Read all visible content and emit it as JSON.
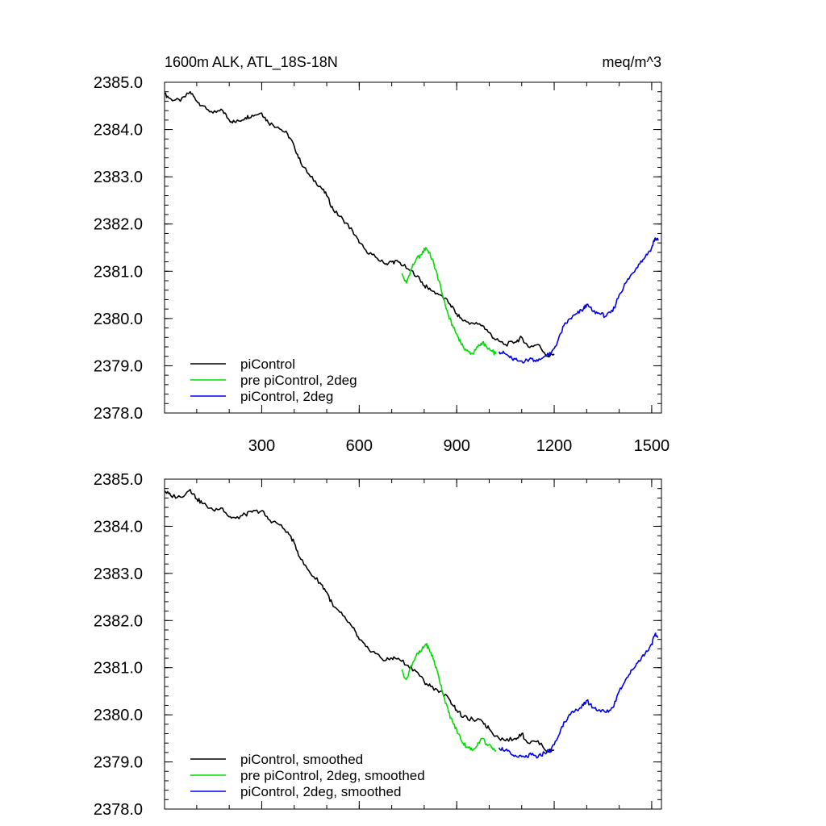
{
  "chart_data": [
    {
      "type": "line",
      "title": "1600m ALK, ATL_18S-18N",
      "units": "meq/m^3",
      "xlim": [
        1,
        1530
      ],
      "ylim": [
        2378.0,
        2385.0
      ],
      "x_ticks": [
        300,
        600,
        900,
        1200,
        1500
      ],
      "x_tick_labels": [
        "300",
        "600",
        "900",
        "1200",
        "1500"
      ],
      "y_ticks": [
        2378.0,
        2379.0,
        2380.0,
        2381.0,
        2382.0,
        2383.0,
        2384.0,
        2385.0
      ],
      "y_tick_labels": [
        "2378.0",
        "2379.0",
        "2380.0",
        "2381.0",
        "2382.0",
        "2383.0",
        "2384.0",
        "2385.0"
      ],
      "legend_position": "bottom-left",
      "series": [
        {
          "name": "piControl",
          "color": "#000000",
          "x": [
            1,
            20,
            50,
            80,
            100,
            120,
            150,
            180,
            200,
            220,
            250,
            270,
            300,
            320,
            350,
            380,
            400,
            420,
            450,
            480,
            500,
            520,
            550,
            580,
            600,
            620,
            650,
            680,
            700,
            720,
            750,
            780,
            800,
            820,
            850,
            880,
            900,
            920,
            950,
            980,
            1000,
            1020,
            1050,
            1080,
            1100,
            1120,
            1150,
            1180,
            1200
          ],
          "y": [
            2384.75,
            2384.65,
            2384.6,
            2384.8,
            2384.6,
            2384.5,
            2384.35,
            2384.4,
            2384.2,
            2384.15,
            2384.25,
            2384.3,
            2384.35,
            2384.15,
            2384.05,
            2383.9,
            2383.65,
            2383.3,
            2383.0,
            2382.8,
            2382.6,
            2382.3,
            2382.1,
            2381.85,
            2381.6,
            2381.45,
            2381.3,
            2381.15,
            2381.2,
            2381.2,
            2381.05,
            2380.9,
            2380.7,
            2380.6,
            2380.5,
            2380.3,
            2380.1,
            2379.95,
            2379.9,
            2379.85,
            2379.7,
            2379.55,
            2379.45,
            2379.5,
            2379.6,
            2379.4,
            2379.45,
            2379.2,
            2379.25
          ]
        },
        {
          "name": "pre piControl, 2deg",
          "color": "#00dd00",
          "x": [
            730,
            745,
            760,
            775,
            790,
            805,
            815,
            830,
            845,
            860,
            875,
            890,
            905,
            920,
            935,
            950,
            965,
            980,
            995,
            1010,
            1020
          ],
          "y": [
            2380.95,
            2380.75,
            2381.05,
            2381.25,
            2381.35,
            2381.5,
            2381.4,
            2381.15,
            2380.8,
            2380.4,
            2380.05,
            2379.8,
            2379.6,
            2379.4,
            2379.3,
            2379.25,
            2379.4,
            2379.5,
            2379.35,
            2379.3,
            2379.25
          ]
        },
        {
          "name": "piControl, 2deg",
          "color": "#0000ee",
          "x": [
            1030,
            1050,
            1070,
            1090,
            1110,
            1130,
            1150,
            1170,
            1190,
            1210,
            1230,
            1250,
            1270,
            1290,
            1300,
            1320,
            1340,
            1360,
            1380,
            1400,
            1420,
            1440,
            1460,
            1480,
            1500,
            1510,
            1520
          ],
          "y": [
            2379.3,
            2379.25,
            2379.15,
            2379.1,
            2379.1,
            2379.15,
            2379.1,
            2379.2,
            2379.25,
            2379.5,
            2379.85,
            2380.0,
            2380.1,
            2380.2,
            2380.3,
            2380.15,
            2380.1,
            2380.05,
            2380.15,
            2380.5,
            2380.75,
            2380.95,
            2381.15,
            2381.3,
            2381.5,
            2381.7,
            2381.65
          ]
        }
      ]
    },
    {
      "type": "line",
      "xlim": [
        1,
        1530
      ],
      "ylim": [
        2378.0,
        2385.0
      ],
      "x_ticks": [
        300,
        600,
        900,
        1200,
        1500
      ],
      "y_ticks": [
        2378.0,
        2379.0,
        2380.0,
        2381.0,
        2382.0,
        2383.0,
        2384.0,
        2385.0
      ],
      "y_tick_labels": [
        "2378.0",
        "2379.0",
        "2380.0",
        "2381.0",
        "2382.0",
        "2383.0",
        "2384.0",
        "2385.0"
      ],
      "legend_position": "bottom-left",
      "series": [
        {
          "name": "piControl, smoothed",
          "color": "#000000",
          "x": [
            1,
            20,
            50,
            80,
            100,
            120,
            150,
            180,
            200,
            220,
            250,
            270,
            300,
            320,
            350,
            380,
            400,
            420,
            450,
            480,
            500,
            520,
            550,
            580,
            600,
            620,
            650,
            680,
            700,
            720,
            750,
            780,
            800,
            820,
            850,
            880,
            900,
            920,
            950,
            980,
            1000,
            1020,
            1050,
            1080,
            1100,
            1120,
            1150,
            1180,
            1200
          ],
          "y": [
            2384.75,
            2384.65,
            2384.62,
            2384.78,
            2384.58,
            2384.48,
            2384.35,
            2384.38,
            2384.2,
            2384.17,
            2384.25,
            2384.3,
            2384.33,
            2384.15,
            2384.05,
            2383.88,
            2383.65,
            2383.3,
            2383.0,
            2382.8,
            2382.6,
            2382.3,
            2382.1,
            2381.85,
            2381.6,
            2381.45,
            2381.3,
            2381.15,
            2381.2,
            2381.2,
            2381.05,
            2380.9,
            2380.7,
            2380.6,
            2380.5,
            2380.3,
            2380.1,
            2379.95,
            2379.9,
            2379.85,
            2379.7,
            2379.55,
            2379.45,
            2379.5,
            2379.6,
            2379.4,
            2379.45,
            2379.22,
            2379.25
          ]
        },
        {
          "name": "pre piControl, 2deg, smoothed",
          "color": "#00dd00",
          "x": [
            730,
            745,
            760,
            775,
            790,
            805,
            815,
            830,
            845,
            860,
            875,
            890,
            905,
            920,
            935,
            950,
            965,
            980,
            995,
            1010,
            1020
          ],
          "y": [
            2380.95,
            2380.75,
            2381.05,
            2381.25,
            2381.35,
            2381.5,
            2381.4,
            2381.15,
            2380.8,
            2380.4,
            2380.05,
            2379.8,
            2379.6,
            2379.4,
            2379.3,
            2379.25,
            2379.4,
            2379.5,
            2379.35,
            2379.3,
            2379.25
          ]
        },
        {
          "name": "piControl, 2deg, smoothed",
          "color": "#0000ee",
          "x": [
            1030,
            1050,
            1070,
            1090,
            1110,
            1130,
            1150,
            1170,
            1190,
            1210,
            1230,
            1250,
            1270,
            1290,
            1300,
            1320,
            1340,
            1360,
            1380,
            1400,
            1420,
            1440,
            1460,
            1480,
            1500,
            1510,
            1520
          ],
          "y": [
            2379.3,
            2379.25,
            2379.15,
            2379.1,
            2379.1,
            2379.15,
            2379.1,
            2379.2,
            2379.25,
            2379.5,
            2379.85,
            2380.0,
            2380.1,
            2380.2,
            2380.3,
            2380.15,
            2380.1,
            2380.05,
            2380.15,
            2380.5,
            2380.75,
            2380.95,
            2381.15,
            2381.3,
            2381.5,
            2381.7,
            2381.65
          ]
        }
      ]
    }
  ]
}
